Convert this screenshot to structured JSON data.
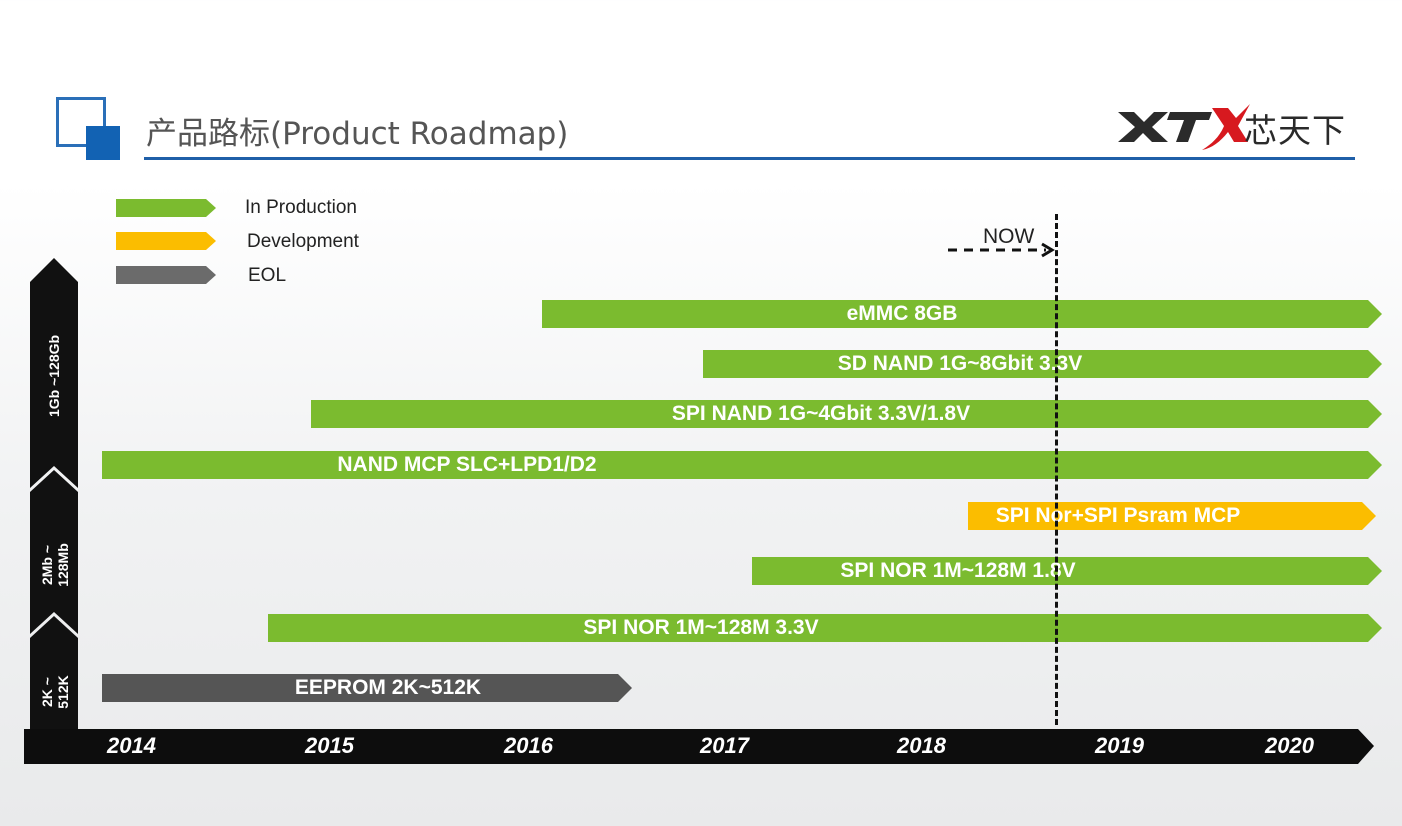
{
  "header": {
    "title": "产品路标(Product Roadmap)",
    "logo_text": "XTX",
    "logo_cn": "芯天下"
  },
  "legend": [
    {
      "label": "In Production",
      "color": "#7bbb2f"
    },
    {
      "label": "Development",
      "color": "#fbbd00"
    },
    {
      "label": "EOL",
      "color": "#5b5b5b"
    }
  ],
  "now_label": "NOW",
  "categories": [
    {
      "label": "1Gb ~128Gb"
    },
    {
      "label_line1": "2Mb ~",
      "label_line2": "128Mb"
    },
    {
      "label_line1": "2K ~",
      "label_line2": "512K"
    }
  ],
  "years": [
    "2014",
    "2015",
    "2016",
    "2017",
    "2018",
    "2019",
    "2020"
  ],
  "products": [
    {
      "label": "eMMC 8GB",
      "status": "In Production",
      "start": "2016.1",
      "end": "2020"
    },
    {
      "label": "SD NAND 1G~8Gbit 3.3V",
      "status": "In Production",
      "start": "2016.9",
      "end": "2020"
    },
    {
      "label": "SPI NAND 1G~4Gbit 3.3V/1.8V",
      "status": "In Production",
      "start": "2014.9",
      "end": "2020"
    },
    {
      "label": "NAND MCP  SLC+LPD1/D2",
      "status": "In Production",
      "start": "2014",
      "end": "2020"
    },
    {
      "label": "SPI Nor+SPI Psram MCP",
      "status": "Development",
      "start": "2018.2",
      "end": "2020"
    },
    {
      "label": "SPI NOR  1M~128M  1.8V",
      "status": "In Production",
      "start": "2017.1",
      "end": "2020"
    },
    {
      "label": "SPI NOR  1M~128M  3.3V",
      "status": "In Production",
      "start": "2014.7",
      "end": "2020"
    },
    {
      "label": "EEPROM  2K~512K",
      "status": "EOL",
      "start": "2014",
      "end": "2016.5"
    }
  ]
}
